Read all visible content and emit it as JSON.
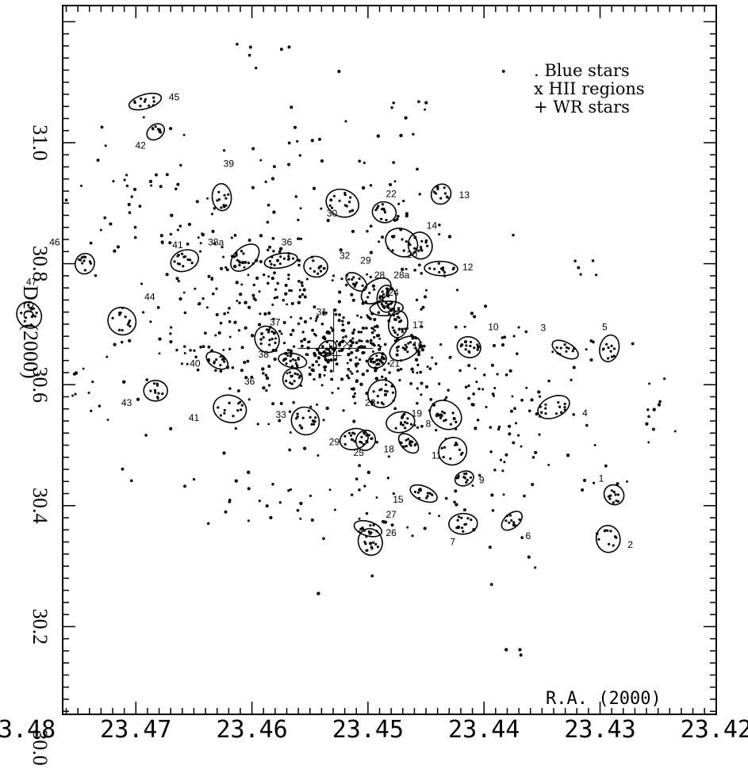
{
  "chart_data": {
    "type": "scatter",
    "title": "",
    "xlabel": "R.A. (2000)",
    "ylabel": "Dec.(2000)",
    "xlim": [
      23.48,
      23.42
    ],
    "ylim": [
      30.0,
      31.2
    ],
    "x_ticks": [
      "23.48",
      "23.47",
      "23.46",
      "23.45",
      "23.44",
      "23.43",
      "23.42"
    ],
    "y_ticks": [
      "30.0",
      "30.2",
      "30.4",
      "30.6",
      "30.8",
      "31.0"
    ],
    "legend": {
      "placement": "top-right",
      "entries": [
        ". Blue stars",
        "x HII regions",
        "+ WR stars"
      ]
    },
    "regions": [
      {
        "id": "1",
        "ra": 23.4288,
        "dec": 30.418,
        "label_ra": 23.4299,
        "label_dec": 30.44
      },
      {
        "id": "2",
        "ra": 23.4293,
        "dec": 30.345,
        "label_ra": 23.4274,
        "label_dec": 30.33
      },
      {
        "id": "3",
        "ra": 23.433,
        "dec": 30.658,
        "label_ra": 23.4349,
        "label_dec": 30.689
      },
      {
        "id": "4",
        "ra": 23.434,
        "dec": 30.563,
        "label_ra": 23.4313,
        "label_dec": 30.548
      },
      {
        "id": "5",
        "ra": 23.4292,
        "dec": 30.66,
        "label_ra": 23.4296,
        "label_dec": 30.69
      },
      {
        "id": "6",
        "ra": 23.4376,
        "dec": 30.375,
        "label_ra": 23.4362,
        "label_dec": 30.345
      },
      {
        "id": "7",
        "ra": 23.4418,
        "dec": 30.37,
        "label_ra": 23.4427,
        "label_dec": 30.335
      },
      {
        "id": "8",
        "ra": 23.4433,
        "dec": 30.55,
        "label_ra": 23.4448,
        "label_dec": 30.53
      },
      {
        "id": "9",
        "ra": 23.4417,
        "dec": 30.445,
        "label_ra": 23.4402,
        "label_dec": 30.437
      },
      {
        "id": "10",
        "ra": 23.4413,
        "dec": 30.662,
        "label_ra": 23.4392,
        "label_dec": 30.69
      },
      {
        "id": "11",
        "ra": 23.4427,
        "dec": 30.49,
        "label_ra": 23.4441,
        "label_dec": 30.478
      },
      {
        "id": "12",
        "ra": 23.4437,
        "dec": 30.792,
        "label_ra": 23.4414,
        "label_dec": 30.789
      },
      {
        "id": "13",
        "ra": 23.4437,
        "dec": 30.915,
        "label_ra": 23.4417,
        "label_dec": 30.908
      },
      {
        "id": "14",
        "ra": 23.4455,
        "dec": 30.83,
        "label_ra": 23.4445,
        "label_dec": 30.858
      },
      {
        "id": "15",
        "ra": 23.4452,
        "dec": 30.42,
        "label_ra": 23.4474,
        "label_dec": 30.405
      },
      {
        "id": "16",
        "ra": 23.4468,
        "dec": 30.66,
        "label_ra": 23.4457,
        "label_dec": 30.66
      },
      {
        "id": "17",
        "ra": 23.4474,
        "dec": 30.7,
        "label_ra": 23.4457,
        "label_dec": 30.693
      },
      {
        "id": "18",
        "ra": 23.4465,
        "dec": 30.503,
        "label_ra": 23.4482,
        "label_dec": 30.488
      },
      {
        "id": "19",
        "ra": 23.4472,
        "dec": 30.538,
        "label_ra": 23.4458,
        "label_dec": 30.547
      },
      {
        "id": "20",
        "ra": 23.4471,
        "dec": 30.835,
        "label_ra": 23.4462,
        "label_dec": 30.81
      },
      {
        "id": "21",
        "ra": 23.4492,
        "dec": 30.64,
        "label_ra": 23.4477,
        "label_dec": 30.63
      },
      {
        "id": "22",
        "ra": 23.4486,
        "dec": 30.885,
        "label_ra": 23.448,
        "label_dec": 30.91
      },
      {
        "id": "23",
        "ra": 23.4488,
        "dec": 30.585,
        "label_ra": 23.4498,
        "label_dec": 30.565
      },
      {
        "id": "24",
        "ra": 23.4484,
        "dec": 30.726,
        "label_ra": 23.4478,
        "label_dec": 30.747
      },
      {
        "id": "25",
        "ra": 23.4502,
        "dec": 30.508,
        "label_ra": 23.4508,
        "label_dec": 30.482
      },
      {
        "id": "26",
        "ra": 23.4498,
        "dec": 30.34,
        "label_ra": 23.448,
        "label_dec": 30.35
      },
      {
        "id": "27",
        "ra": 23.45,
        "dec": 30.362,
        "label_ra": 23.448,
        "label_dec": 30.38
      },
      {
        "id": "28",
        "ra": 23.4493,
        "dec": 30.755,
        "label_ra": 23.449,
        "label_dec": 30.776
      },
      {
        "id": "28a",
        "ra": 23.4484,
        "dec": 30.742,
        "label_ra": 23.4471,
        "label_dec": 30.776
      },
      {
        "id": "29",
        "ra": 23.451,
        "dec": 30.77,
        "label_ra": 23.4502,
        "label_dec": 30.8
      },
      {
        "id": "29",
        "ra": 23.4512,
        "dec": 30.51,
        "label_ra": 23.4529,
        "label_dec": 30.5
      },
      {
        "id": "30",
        "ra": 23.4522,
        "dec": 30.9,
        "label_ra": 23.4531,
        "label_dec": 30.878
      },
      {
        "id": "31",
        "ra": 23.4535,
        "dec": 30.66,
        "label_ra": 23.454,
        "label_dec": 30.715
      },
      {
        "id": "32",
        "ra": 23.4545,
        "dec": 30.795,
        "label_ra": 23.452,
        "label_dec": 30.808
      },
      {
        "id": "33",
        "ra": 23.4554,
        "dec": 30.54,
        "label_ra": 23.4575,
        "label_dec": 30.545
      },
      {
        "id": "36",
        "ra": 23.4575,
        "dec": 30.805,
        "label_ra": 23.457,
        "label_dec": 30.83
      },
      {
        "id": "36",
        "ra": 23.4565,
        "dec": 30.61,
        "label_ra": 23.4602,
        "label_dec": 30.6
      },
      {
        "id": "37",
        "ra": 23.4587,
        "dec": 30.675,
        "label_ra": 23.458,
        "label_dec": 30.698
      },
      {
        "id": "38",
        "ra": 23.4565,
        "dec": 30.64,
        "label_ra": 23.459,
        "label_dec": 30.645
      },
      {
        "id": "38a",
        "ra": 23.4606,
        "dec": 30.81,
        "label_ra": 23.4631,
        "label_dec": 30.83
      },
      {
        "id": "39",
        "ra": 23.4626,
        "dec": 30.91,
        "label_ra": 23.462,
        "label_dec": 30.96
      },
      {
        "id": "40",
        "ra": 23.463,
        "dec": 30.64,
        "label_ra": 23.4649,
        "label_dec": 30.63
      },
      {
        "id": "41",
        "ra": 23.4658,
        "dec": 30.805,
        "label_ra": 23.4664,
        "label_dec": 30.826
      },
      {
        "id": "41",
        "ra": 23.4619,
        "dec": 30.56,
        "label_ra": 23.465,
        "label_dec": 30.54
      },
      {
        "id": "42",
        "ra": 23.4683,
        "dec": 31.018,
        "label_ra": 23.4696,
        "label_dec": 30.99
      },
      {
        "id": "43",
        "ra": 23.4683,
        "dec": 30.59,
        "label_ra": 23.4708,
        "label_dec": 30.565
      },
      {
        "id": "44",
        "ra": 23.4712,
        "dec": 30.705,
        "label_ra": 23.4688,
        "label_dec": 30.74
      },
      {
        "id": "45",
        "ra": 23.4692,
        "dec": 31.068,
        "label_ra": 23.4667,
        "label_dec": 31.07
      },
      {
        "id": "46",
        "ra": 23.4744,
        "dec": 30.8,
        "label_ra": 23.477,
        "label_dec": 30.83
      },
      {
        "id": "47",
        "ra": 23.4792,
        "dec": 30.715,
        "label_ra": 23.479,
        "label_dec": 30.765
      }
    ],
    "wr_stars": [
      {
        "ra": 23.4533,
        "dec": 30.66
      },
      {
        "ra": 23.4527,
        "dec": 30.648
      }
    ],
    "hii_regions": [
      {
        "ra": 23.4518,
        "dec": 30.668
      }
    ],
    "blue_star_clusters": [
      {
        "ra": 23.4537,
        "dec": 30.66,
        "n": 60,
        "spread_ra": 0.0018,
        "spread_dec": 0.022
      },
      {
        "ra": 23.4512,
        "dec": 30.7,
        "n": 55,
        "spread_ra": 0.0025,
        "spread_dec": 0.035
      },
      {
        "ra": 23.45,
        "dec": 30.62,
        "n": 55,
        "spread_ra": 0.0025,
        "spread_dec": 0.035
      },
      {
        "ra": 23.456,
        "dec": 30.72,
        "n": 55,
        "spread_ra": 0.0028,
        "spread_dec": 0.04
      },
      {
        "ra": 23.4575,
        "dec": 30.6,
        "n": 45,
        "spread_ra": 0.0025,
        "spread_dec": 0.04
      },
      {
        "ra": 23.448,
        "dec": 30.69,
        "n": 40,
        "spread_ra": 0.0025,
        "spread_dec": 0.04
      },
      {
        "ra": 23.459,
        "dec": 30.78,
        "n": 40,
        "spread_ra": 0.003,
        "spread_dec": 0.04
      },
      {
        "ra": 23.462,
        "dec": 30.7,
        "n": 45,
        "spread_ra": 0.003,
        "spread_dec": 0.05
      },
      {
        "ra": 23.447,
        "dec": 30.6,
        "n": 35,
        "spread_ra": 0.003,
        "spread_dec": 0.05
      },
      {
        "ra": 23.444,
        "dec": 30.65,
        "n": 40,
        "spread_ra": 0.0035,
        "spread_dec": 0.06
      },
      {
        "ra": 23.44,
        "dec": 30.56,
        "n": 40,
        "spread_ra": 0.004,
        "spread_dec": 0.07
      },
      {
        "ra": 23.436,
        "dec": 30.62,
        "n": 35,
        "spread_ra": 0.004,
        "spread_dec": 0.06
      },
      {
        "ra": 23.465,
        "dec": 30.85,
        "n": 40,
        "spread_ra": 0.004,
        "spread_dec": 0.06
      },
      {
        "ra": 23.468,
        "dec": 30.65,
        "n": 30,
        "spread_ra": 0.004,
        "spread_dec": 0.06
      },
      {
        "ra": 23.455,
        "dec": 30.88,
        "n": 30,
        "spread_ra": 0.004,
        "spread_dec": 0.06
      },
      {
        "ra": 23.447,
        "dec": 30.86,
        "n": 30,
        "spread_ra": 0.004,
        "spread_dec": 0.06
      },
      {
        "ra": 23.47,
        "dec": 30.92,
        "n": 30,
        "spread_ra": 0.004,
        "spread_dec": 0.06
      },
      {
        "ra": 23.452,
        "dec": 30.45,
        "n": 30,
        "spread_ra": 0.004,
        "spread_dec": 0.06
      },
      {
        "ra": 23.44,
        "dec": 30.42,
        "n": 20,
        "spread_ra": 0.004,
        "spread_dec": 0.05
      },
      {
        "ra": 23.432,
        "dec": 30.47,
        "n": 20,
        "spread_ra": 0.004,
        "spread_dec": 0.06
      },
      {
        "ra": 23.462,
        "dec": 30.47,
        "n": 20,
        "spread_ra": 0.004,
        "spread_dec": 0.06
      },
      {
        "ra": 23.453,
        "dec": 31.0,
        "n": 15,
        "spread_ra": 0.004,
        "spread_dec": 0.05
      },
      {
        "ra": 23.476,
        "dec": 30.6,
        "n": 15,
        "spread_ra": 0.004,
        "spread_dec": 0.08
      },
      {
        "ra": 23.448,
        "dec": 30.35,
        "n": 15,
        "spread_ra": 0.004,
        "spread_dec": 0.05
      },
      {
        "ra": 23.446,
        "dec": 31.05,
        "n": 10,
        "spread_ra": 0.003,
        "spread_dec": 0.03
      },
      {
        "ra": 23.459,
        "dec": 31.15,
        "n": 6,
        "spread_ra": 0.0015,
        "spread_dec": 0.01
      },
      {
        "ra": 23.437,
        "dec": 30.16,
        "n": 4,
        "spread_ra": 0.0005,
        "spread_dec": 0.005
      },
      {
        "ra": 23.425,
        "dec": 30.56,
        "n": 8,
        "spread_ra": 0.0008,
        "spread_dec": 0.03
      },
      {
        "ra": 23.431,
        "dec": 30.8,
        "n": 5,
        "spread_ra": 0.001,
        "spread_dec": 0.01
      }
    ],
    "grid": false
  }
}
